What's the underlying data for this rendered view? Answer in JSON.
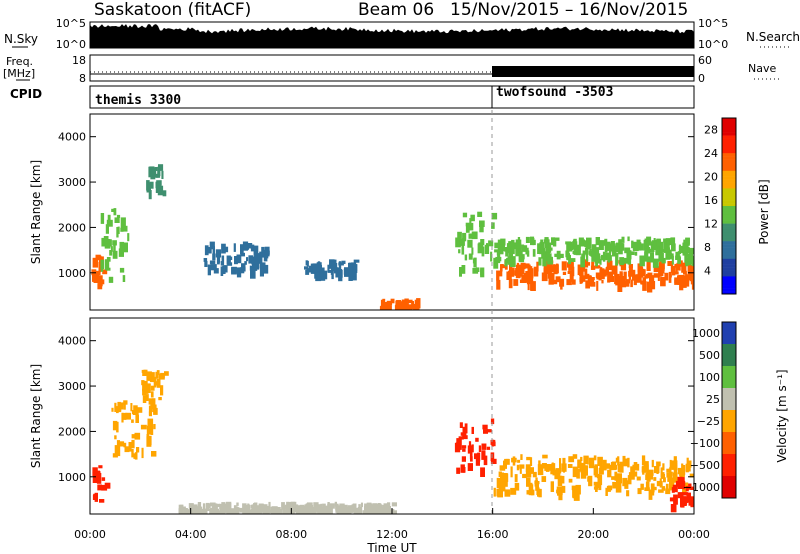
{
  "header": {
    "station": "Saskatoon (fitACF)",
    "beam_label": "Beam 06",
    "date_range": "15/Nov/2015 – 16/Nov/2015"
  },
  "top_panels": {
    "nsky": {
      "label": "N.Sky",
      "ticks": [
        "10^5",
        "10^0"
      ],
      "right_label": "N.Search",
      "right_ticks": [
        "10^5",
        "10^0"
      ]
    },
    "freq": {
      "label_line1": "Freq.",
      "label_line2": "[MHz]",
      "ticks": [
        "18",
        "8"
      ],
      "right_label": "Nave",
      "right_ticks": [
        "60",
        "0"
      ]
    },
    "cpid": {
      "label": "CPID",
      "program1": "themis 3300",
      "program2": "twofsound -3503",
      "switch_time_hour": 16
    }
  },
  "colors": {
    "power_scale": [
      "#0000ff",
      "#1f3fa0",
      "#2f6f9c",
      "#3f8f6f",
      "#5fbf3f",
      "#c8c800",
      "#ffa500",
      "#ff6000",
      "#ff2000",
      "#e00000"
    ],
    "velocity_scale": [
      "#2040b0",
      "#2f7f4f",
      "#5fbf3f",
      "#c0c0b0",
      "#ffa500",
      "#ff6000",
      "#ff2000",
      "#e00000"
    ],
    "ground_scatter": "#c0c0b0"
  },
  "chart_data": [
    {
      "type": "heatmap",
      "name": "power",
      "ylabel": "Slant Range [km]",
      "xlim_hours": [
        0,
        24
      ],
      "ylim_km": [
        180,
        4500
      ],
      "yticks": [
        "1000",
        "2000",
        "3000",
        "4000"
      ],
      "colorbar": {
        "label": "Power [dB]",
        "ticks": [
          "4",
          "8",
          "12",
          "16",
          "20",
          "24",
          "28"
        ],
        "range": [
          0,
          30
        ]
      },
      "features": [
        {
          "t_start": 0.0,
          "t_end": 0.5,
          "r_start": 700,
          "r_end": 1500,
          "value": 24
        },
        {
          "t_start": 0.3,
          "t_end": 1.6,
          "r_start": 900,
          "r_end": 2500,
          "value": 12
        },
        {
          "t_start": 2.2,
          "t_end": 2.9,
          "r_start": 2800,
          "r_end": 3400,
          "value": 9
        },
        {
          "t_start": 4.5,
          "t_end": 7.0,
          "r_start": 1100,
          "r_end": 1700,
          "value": 8
        },
        {
          "t_start": 8.5,
          "t_end": 10.5,
          "r_start": 1000,
          "r_end": 1300,
          "value": 8
        },
        {
          "t_start": 11.5,
          "t_end": 13.0,
          "r_start": 250,
          "r_end": 450,
          "value": 22
        },
        {
          "t_start": 14.5,
          "t_end": 16.0,
          "r_start": 1000,
          "r_end": 2400,
          "value": 14
        },
        {
          "t_start": 16.0,
          "t_end": 24.0,
          "r_start": 800,
          "r_end": 1300,
          "value": 22
        },
        {
          "t_start": 16.0,
          "t_end": 24.0,
          "r_start": 1300,
          "r_end": 1800,
          "value": 12
        }
      ]
    },
    {
      "type": "heatmap",
      "name": "velocity",
      "ylabel": "Slant Range [km]",
      "xlabel": "Time UT",
      "xlim_hours": [
        0,
        24
      ],
      "ylim_km": [
        180,
        4500
      ],
      "yticks": [
        "1000",
        "2000",
        "3000",
        "4000"
      ],
      "xticks": [
        "00:00",
        "04:00",
        "08:00",
        "12:00",
        "16:00",
        "20:00",
        "00:00"
      ],
      "colorbar": {
        "label": "Velocity [m s⁻¹]",
        "ticks": [
          "1000",
          "500",
          "100",
          "25",
          "−25",
          "−100",
          "−500",
          "−1000"
        ]
      },
      "features": [
        {
          "t_start": 0.0,
          "t_end": 0.6,
          "r_start": 500,
          "r_end": 1300,
          "value": -300
        },
        {
          "t_start": 0.8,
          "t_end": 2.6,
          "r_start": 1500,
          "r_end": 2700,
          "value": 0
        },
        {
          "t_start": 2.0,
          "t_end": 3.0,
          "r_start": 2700,
          "r_end": 3400,
          "value": 0
        },
        {
          "t_start": 3.5,
          "t_end": 12.0,
          "r_start": 250,
          "r_end": 450,
          "value": 80
        },
        {
          "t_start": 14.5,
          "t_end": 16.0,
          "r_start": 1200,
          "r_end": 2300,
          "value": -200
        },
        {
          "t_start": 16.0,
          "t_end": 24.0,
          "r_start": 700,
          "r_end": 1500,
          "value": 0
        },
        {
          "t_start": 23.0,
          "t_end": 24.0,
          "r_start": 400,
          "r_end": 1000,
          "value": -300
        }
      ]
    }
  ]
}
